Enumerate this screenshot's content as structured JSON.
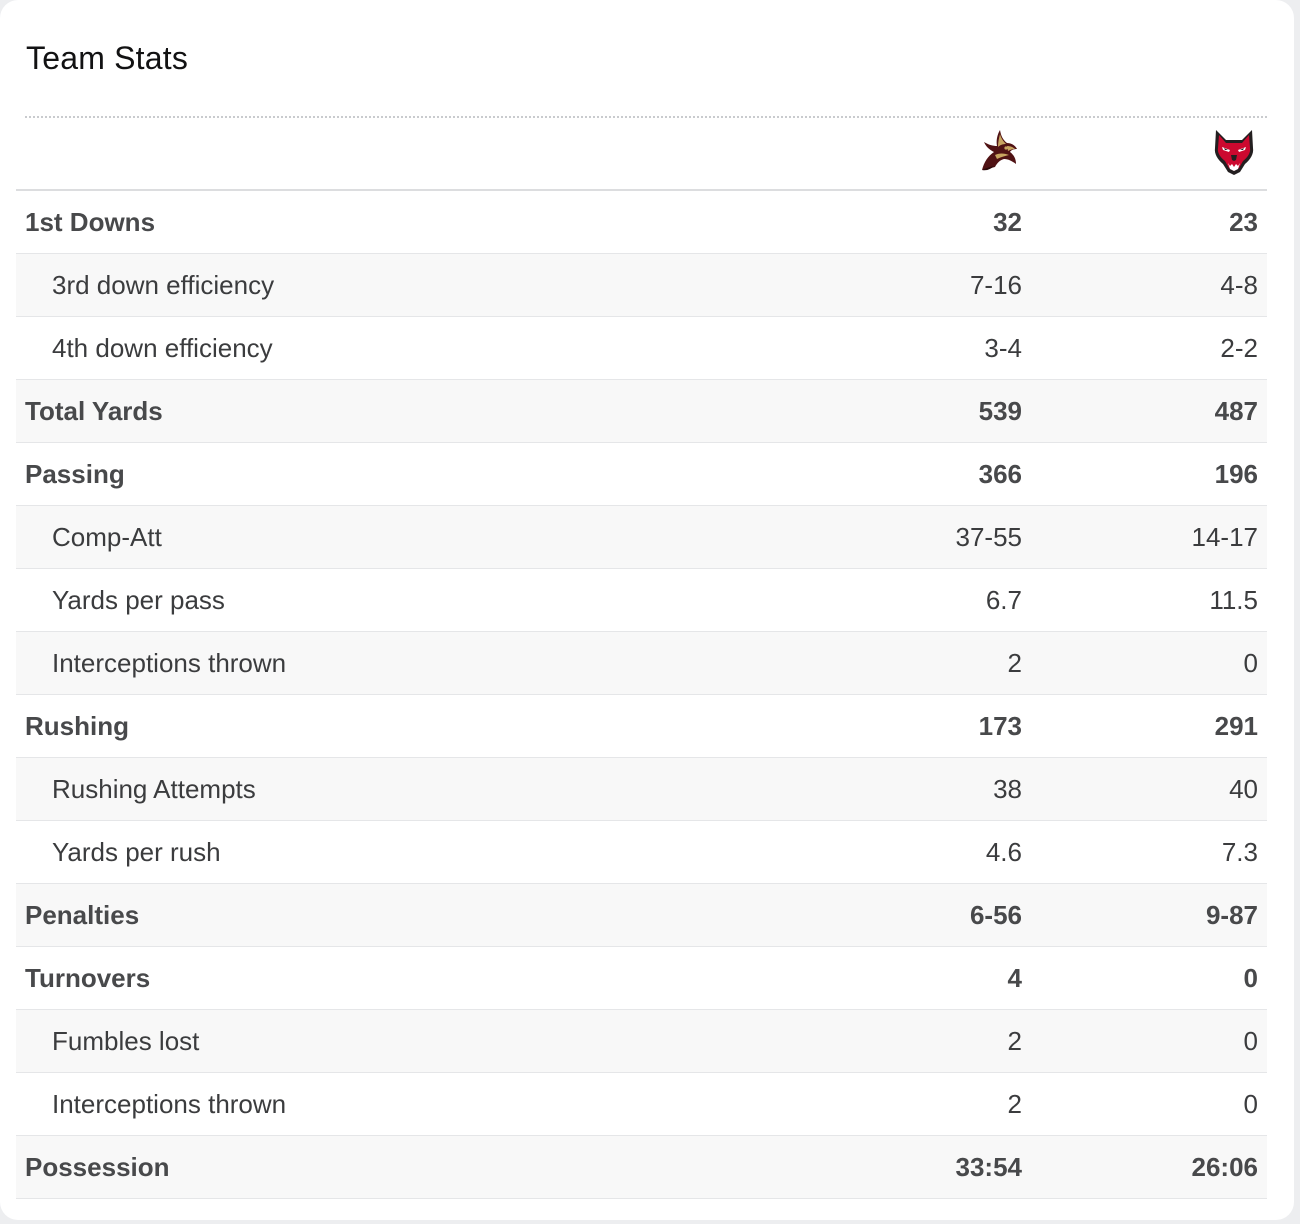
{
  "card": {
    "title": "Team Stats"
  },
  "teams": {
    "home": {
      "icon": "bobcat-logo-icon",
      "colors": {
        "primary": "#501214",
        "secondary": "#c8a561"
      }
    },
    "away": {
      "icon": "red-wolf-logo-icon",
      "colors": {
        "primary": "#cc092f",
        "secondary": "#231f20"
      }
    }
  },
  "stats": [
    {
      "label": "1st Downs",
      "home": "32",
      "away": "23",
      "type": "main"
    },
    {
      "label": "3rd down efficiency",
      "home": "7-16",
      "away": "4-8",
      "type": "sub"
    },
    {
      "label": "4th down efficiency",
      "home": "3-4",
      "away": "2-2",
      "type": "sub"
    },
    {
      "label": "Total Yards",
      "home": "539",
      "away": "487",
      "type": "main"
    },
    {
      "label": "Passing",
      "home": "366",
      "away": "196",
      "type": "main"
    },
    {
      "label": "Comp-Att",
      "home": "37-55",
      "away": "14-17",
      "type": "sub"
    },
    {
      "label": "Yards per pass",
      "home": "6.7",
      "away": "11.5",
      "type": "sub"
    },
    {
      "label": "Interceptions thrown",
      "home": "2",
      "away": "0",
      "type": "sub"
    },
    {
      "label": "Rushing",
      "home": "173",
      "away": "291",
      "type": "main"
    },
    {
      "label": "Rushing Attempts",
      "home": "38",
      "away": "40",
      "type": "sub"
    },
    {
      "label": "Yards per rush",
      "home": "4.6",
      "away": "7.3",
      "type": "sub"
    },
    {
      "label": "Penalties",
      "home": "6-56",
      "away": "9-87",
      "type": "main"
    },
    {
      "label": "Turnovers",
      "home": "4",
      "away": "0",
      "type": "main"
    },
    {
      "label": "Fumbles lost",
      "home": "2",
      "away": "0",
      "type": "sub"
    },
    {
      "label": "Interceptions thrown",
      "home": "2",
      "away": "0",
      "type": "sub"
    },
    {
      "label": "Possession",
      "home": "33:54",
      "away": "26:06",
      "type": "main"
    }
  ]
}
